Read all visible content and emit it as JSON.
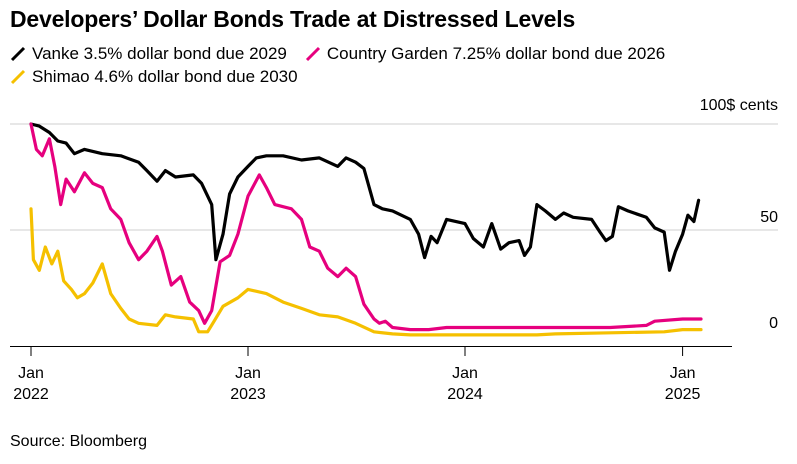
{
  "title": "Developers’ Dollar Bonds Trade at Distressed Levels",
  "source": "Source: Bloomberg",
  "chart_data": {
    "type": "line",
    "title": "Developers’ Dollar Bonds Trade at Distressed Levels",
    "unit_label": "100$ cents",
    "ylim": [
      0,
      100
    ],
    "y_ticks": [
      0,
      50
    ],
    "x_ticks": [
      {
        "date": "2022-01-01",
        "line1": "Jan",
        "line2": "2022"
      },
      {
        "date": "2023-01-01",
        "line1": "Jan",
        "line2": "2023"
      },
      {
        "date": "2024-01-01",
        "line1": "Jan",
        "line2": "2024"
      },
      {
        "date": "2025-01-01",
        "line1": "Jan",
        "line2": "2025"
      }
    ],
    "grid": "horizontal",
    "legend_position": "top",
    "series": [
      {
        "name": "Vanke 3.5% dollar bond due 2029",
        "color": "#000000",
        "points": [
          [
            "2022-01-01",
            100
          ],
          [
            "2022-01-15",
            99
          ],
          [
            "2022-02-01",
            96
          ],
          [
            "2022-02-15",
            92
          ],
          [
            "2022-03-01",
            91
          ],
          [
            "2022-03-15",
            86
          ],
          [
            "2022-04-01",
            88
          ],
          [
            "2022-05-01",
            86
          ],
          [
            "2022-06-01",
            85
          ],
          [
            "2022-07-01",
            82
          ],
          [
            "2022-07-15",
            78
          ],
          [
            "2022-08-01",
            73
          ],
          [
            "2022-08-15",
            78
          ],
          [
            "2022-09-01",
            75
          ],
          [
            "2022-10-01",
            76
          ],
          [
            "2022-10-15",
            72
          ],
          [
            "2022-11-01",
            62
          ],
          [
            "2022-11-08",
            36
          ],
          [
            "2022-11-20",
            48
          ],
          [
            "2022-12-01",
            67
          ],
          [
            "2022-12-15",
            75
          ],
          [
            "2023-01-01",
            80
          ],
          [
            "2023-01-15",
            84
          ],
          [
            "2023-02-01",
            85
          ],
          [
            "2023-03-01",
            85
          ],
          [
            "2023-04-01",
            83
          ],
          [
            "2023-05-01",
            84
          ],
          [
            "2023-06-01",
            80
          ],
          [
            "2023-06-15",
            84
          ],
          [
            "2023-07-01",
            82
          ],
          [
            "2023-07-15",
            79
          ],
          [
            "2023-08-01",
            62
          ],
          [
            "2023-08-15",
            60
          ],
          [
            "2023-09-01",
            59
          ],
          [
            "2023-10-01",
            55
          ],
          [
            "2023-10-15",
            48
          ],
          [
            "2023-10-25",
            37
          ],
          [
            "2023-11-05",
            47
          ],
          [
            "2023-11-15",
            44
          ],
          [
            "2023-12-01",
            55
          ],
          [
            "2024-01-01",
            53
          ],
          [
            "2024-01-15",
            46
          ],
          [
            "2024-02-01",
            42
          ],
          [
            "2024-02-15",
            53
          ],
          [
            "2024-03-01",
            41
          ],
          [
            "2024-03-15",
            44
          ],
          [
            "2024-04-01",
            45
          ],
          [
            "2024-04-10",
            38
          ],
          [
            "2024-04-20",
            42
          ],
          [
            "2024-05-01",
            62
          ],
          [
            "2024-05-15",
            59
          ],
          [
            "2024-06-01",
            55
          ],
          [
            "2024-06-15",
            58
          ],
          [
            "2024-07-01",
            56
          ],
          [
            "2024-08-01",
            55
          ],
          [
            "2024-08-15",
            49
          ],
          [
            "2024-08-25",
            45
          ],
          [
            "2024-09-05",
            47
          ],
          [
            "2024-09-15",
            61
          ],
          [
            "2024-10-01",
            59
          ],
          [
            "2024-11-01",
            56
          ],
          [
            "2024-11-15",
            51
          ],
          [
            "2024-12-01",
            49
          ],
          [
            "2024-12-10",
            31
          ],
          [
            "2024-12-20",
            40
          ],
          [
            "2025-01-01",
            48
          ],
          [
            "2025-01-10",
            57
          ],
          [
            "2025-01-20",
            54
          ],
          [
            "2025-01-28",
            64
          ]
        ]
      },
      {
        "name": "Country Garden 7.25% dollar bond due 2026",
        "color": "#e6007e",
        "points": [
          [
            "2022-01-01",
            100
          ],
          [
            "2022-01-10",
            88
          ],
          [
            "2022-01-20",
            85
          ],
          [
            "2022-02-01",
            93
          ],
          [
            "2022-02-10",
            80
          ],
          [
            "2022-02-20",
            62
          ],
          [
            "2022-03-01",
            74
          ],
          [
            "2022-03-15",
            68
          ],
          [
            "2022-04-01",
            77
          ],
          [
            "2022-04-15",
            72
          ],
          [
            "2022-05-01",
            70
          ],
          [
            "2022-05-15",
            60
          ],
          [
            "2022-06-01",
            55
          ],
          [
            "2022-06-15",
            44
          ],
          [
            "2022-07-01",
            36
          ],
          [
            "2022-07-15",
            40
          ],
          [
            "2022-08-01",
            47
          ],
          [
            "2022-08-10",
            40
          ],
          [
            "2022-08-25",
            24
          ],
          [
            "2022-09-10",
            28
          ],
          [
            "2022-09-25",
            16
          ],
          [
            "2022-10-10",
            12
          ],
          [
            "2022-10-20",
            6
          ],
          [
            "2022-11-01",
            12
          ],
          [
            "2022-11-15",
            35
          ],
          [
            "2022-12-01",
            38
          ],
          [
            "2022-12-15",
            48
          ],
          [
            "2023-01-01",
            66
          ],
          [
            "2023-01-20",
            76
          ],
          [
            "2023-02-01",
            70
          ],
          [
            "2023-02-15",
            62
          ],
          [
            "2023-03-01",
            61
          ],
          [
            "2023-03-15",
            60
          ],
          [
            "2023-04-01",
            55
          ],
          [
            "2023-04-15",
            42
          ],
          [
            "2023-05-01",
            40
          ],
          [
            "2023-05-15",
            32
          ],
          [
            "2023-06-01",
            28
          ],
          [
            "2023-06-15",
            32
          ],
          [
            "2023-07-01",
            28
          ],
          [
            "2023-07-15",
            15
          ],
          [
            "2023-08-01",
            8
          ],
          [
            "2023-08-10",
            6
          ],
          [
            "2023-08-20",
            7
          ],
          [
            "2023-09-01",
            4
          ],
          [
            "2023-10-01",
            3
          ],
          [
            "2023-11-01",
            3
          ],
          [
            "2023-12-01",
            4
          ],
          [
            "2024-01-01",
            4
          ],
          [
            "2024-03-01",
            4
          ],
          [
            "2024-05-01",
            4
          ],
          [
            "2024-07-01",
            4
          ],
          [
            "2024-09-01",
            4
          ],
          [
            "2024-11-01",
            5
          ],
          [
            "2024-11-15",
            7
          ],
          [
            "2025-01-01",
            8
          ],
          [
            "2025-02-01",
            8
          ]
        ]
      },
      {
        "name": "Shimao 4.6% dollar bond due 2030",
        "color": "#f5c000",
        "points": [
          [
            "2022-01-01",
            60
          ],
          [
            "2022-01-05",
            36
          ],
          [
            "2022-01-15",
            31
          ],
          [
            "2022-01-25",
            42
          ],
          [
            "2022-02-05",
            34
          ],
          [
            "2022-02-15",
            40
          ],
          [
            "2022-02-25",
            26
          ],
          [
            "2022-03-10",
            22
          ],
          [
            "2022-03-20",
            18
          ],
          [
            "2022-04-01",
            20
          ],
          [
            "2022-04-15",
            25
          ],
          [
            "2022-05-01",
            34
          ],
          [
            "2022-05-15",
            20
          ],
          [
            "2022-06-01",
            13
          ],
          [
            "2022-06-15",
            8
          ],
          [
            "2022-07-01",
            6
          ],
          [
            "2022-08-01",
            5
          ],
          [
            "2022-08-15",
            10
          ],
          [
            "2022-09-01",
            9
          ],
          [
            "2022-10-01",
            8
          ],
          [
            "2022-10-10",
            2
          ],
          [
            "2022-10-25",
            2
          ],
          [
            "2022-11-05",
            7
          ],
          [
            "2022-11-20",
            14
          ],
          [
            "2022-12-15",
            18
          ],
          [
            "2023-01-01",
            22
          ],
          [
            "2023-02-01",
            20
          ],
          [
            "2023-03-01",
            16
          ],
          [
            "2023-04-01",
            13
          ],
          [
            "2023-05-01",
            10
          ],
          [
            "2023-06-01",
            9
          ],
          [
            "2023-07-01",
            6
          ],
          [
            "2023-08-01",
            2
          ],
          [
            "2023-09-01",
            1
          ],
          [
            "2023-10-01",
            0.5
          ],
          [
            "2023-11-01",
            0.5
          ],
          [
            "2024-01-01",
            0.5
          ],
          [
            "2024-03-01",
            0.5
          ],
          [
            "2024-05-01",
            0.5
          ],
          [
            "2024-06-01",
            1
          ],
          [
            "2024-09-01",
            1.5
          ],
          [
            "2024-12-01",
            2
          ],
          [
            "2025-01-01",
            3
          ],
          [
            "2025-02-01",
            3
          ]
        ]
      }
    ]
  }
}
